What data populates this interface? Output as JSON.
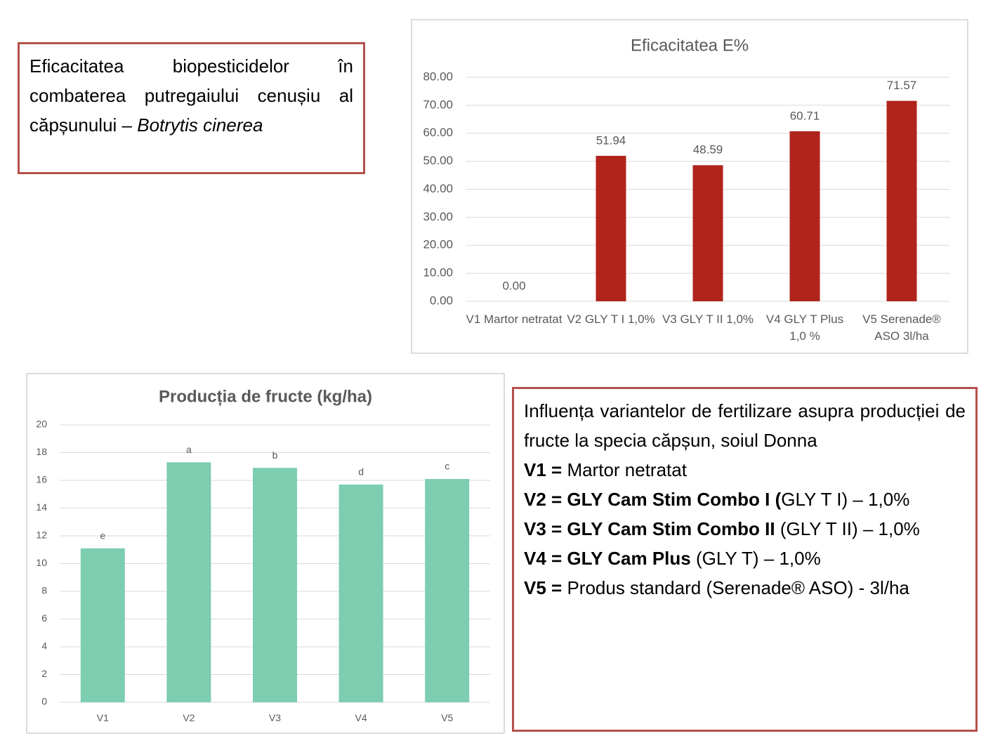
{
  "chart_data": [
    {
      "type": "bar",
      "title": "Eficacitatea E%",
      "categories": [
        "V1 Martor netratat",
        "V2 GLY T I 1,0%",
        "V3 GLY T II 1,0%",
        "V4 GLY T Plus 1,0 %",
        "V5 Serenade® ASO 3l/ha"
      ],
      "values": [
        0,
        51.94,
        48.59,
        60.71,
        71.57
      ],
      "value_labels": [
        "0.00",
        "51.94",
        "48.59",
        "60.71",
        "71.57"
      ],
      "color": "#b0241b",
      "ylim": [
        0,
        80
      ],
      "yticks": [
        {
          "value": 0,
          "label": "0.00"
        },
        {
          "value": 10,
          "label": "10.00"
        },
        {
          "value": 20,
          "label": "20.00"
        },
        {
          "value": 30,
          "label": "30.00"
        },
        {
          "value": 40,
          "label": "40.00"
        },
        {
          "value": 50,
          "label": "50.00"
        },
        {
          "value": 60,
          "label": "60.00"
        },
        {
          "value": 70,
          "label": "70.00"
        },
        {
          "value": 80,
          "label": "80.00"
        }
      ],
      "grid": true
    },
    {
      "type": "bar",
      "title": "Producția de fructe (kg/ha)",
      "categories": [
        "V1",
        "V2",
        "V3",
        "V4",
        "V5"
      ],
      "values": [
        11.1,
        17.3,
        16.9,
        15.7,
        16.1
      ],
      "bar_labels": [
        "e",
        "a",
        "b",
        "d",
        "c"
      ],
      "color": "#7dcdb0",
      "ylim": [
        0,
        20
      ],
      "yticks": [
        0,
        2,
        4,
        6,
        8,
        10,
        12,
        14,
        16,
        18,
        20
      ],
      "grid": true
    }
  ],
  "text_box_1": {
    "parts": [
      "Eficacitatea biopesticidelor în combaterea putregaiului cenușiu al căpșunului – ",
      "Botrytis cinerea"
    ]
  },
  "text_box_2": {
    "intro": "Influența variantelor de fertilizare asupra producției de fructe la specia căpșun, soiul Donna",
    "items": [
      {
        "bold": "V1 = ",
        "text": "Martor netratat"
      },
      {
        "bold": "V2 = GLY Cam Stim Combo I (",
        "text": "GLY T I) – 1,0%"
      },
      {
        "bold": "V3 = GLY Cam Stim Combo II",
        "text": " (GLY T II) – 1,0%"
      },
      {
        "bold": "V4 = GLY Cam Plus",
        "text": " (GLY T) – 1,0%"
      },
      {
        "bold": "V5 = ",
        "text": "Produs standard (Serenade® ASO) - 3l/ha"
      }
    ]
  }
}
